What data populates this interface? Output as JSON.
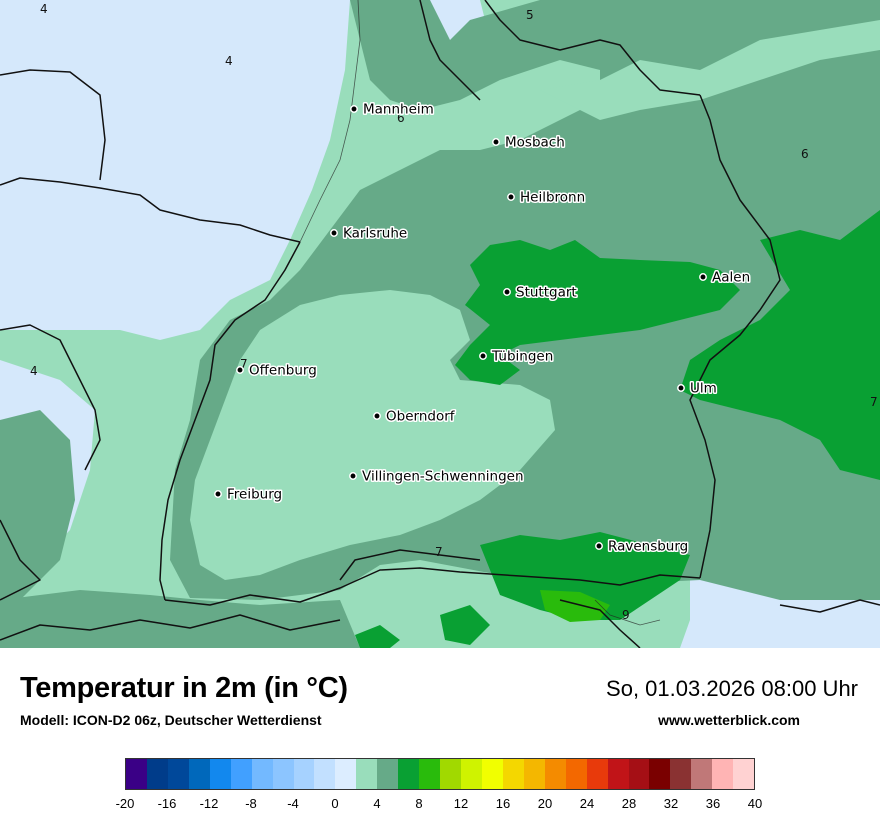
{
  "map": {
    "cities": [
      {
        "name": "Mannheim"
      },
      {
        "name": "Mosbach"
      },
      {
        "name": "Heilbronn"
      },
      {
        "name": "Karlsruhe"
      },
      {
        "name": "Aalen"
      },
      {
        "name": "Stuttgart"
      },
      {
        "name": "Tübingen"
      },
      {
        "name": "Offenburg"
      },
      {
        "name": "Ulm"
      },
      {
        "name": "Oberndorf"
      },
      {
        "name": "Villingen-Schwenningen"
      },
      {
        "name": "Freiburg"
      },
      {
        "name": "Ravensburg"
      }
    ],
    "isotherm_labels": [
      "4",
      "5",
      "4",
      "6",
      "6",
      "4",
      "7",
      "7",
      "7",
      "9"
    ],
    "colors": {
      "light_blue": "#d5e8fb",
      "pale_green": "#99ddbb",
      "mid_green": "#66aa88",
      "bright_green": "#09a033",
      "border": "#111111"
    }
  },
  "footer": {
    "title": "Temperatur in 2m (in °C)",
    "model": "Modell: ICON-D2 06z, Deutscher Wetterdienst",
    "datetime": "So, 01.03.2026 08:00 Uhr",
    "website": "www.wetterblick.com"
  },
  "legend": {
    "colors": [
      "#3a0086",
      "#003c8a",
      "#00489a",
      "#0068bb",
      "#1288ee",
      "#41a0ff",
      "#73b9ff",
      "#8cc5ff",
      "#a6d2ff",
      "#c2e0ff",
      "#dcedff",
      "#99ddbb",
      "#66aa88",
      "#09a033",
      "#29bb0c",
      "#a1d900",
      "#cff300",
      "#f1ff00",
      "#f4d700",
      "#f4b700",
      "#f48b00",
      "#f36800",
      "#e83a0b",
      "#c11418",
      "#a50f15",
      "#7a0000",
      "#8a3232",
      "#c07878",
      "#ffb4b4",
      "#ffd2d2"
    ],
    "ticks": [
      "-20",
      "-16",
      "-12",
      "-8",
      "-4",
      "0",
      "4",
      "8",
      "12",
      "16",
      "20",
      "24",
      "28",
      "32",
      "36",
      "40"
    ]
  }
}
